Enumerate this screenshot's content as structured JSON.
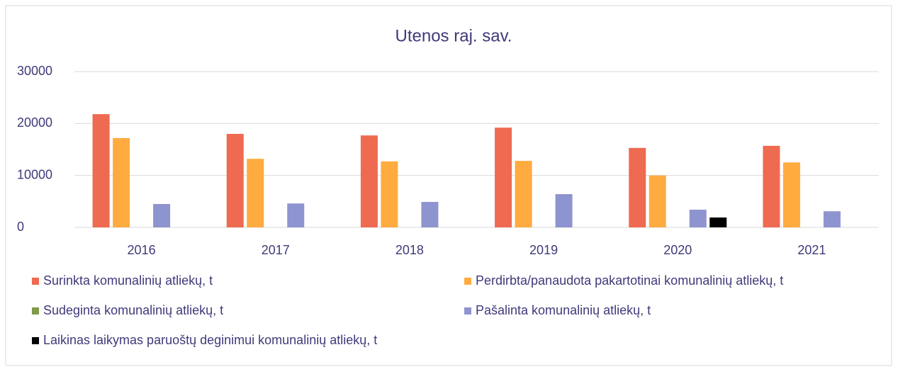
{
  "chart_data": {
    "type": "bar",
    "title": "Utenos raj. sav.",
    "categories": [
      "2016",
      "2017",
      "2018",
      "2019",
      "2020",
      "2021"
    ],
    "series": [
      {
        "name": "Surinkta komunalinių atliekų, t",
        "color": "#ee6a50",
        "values": [
          21800,
          18000,
          17700,
          19200,
          15300,
          15700
        ]
      },
      {
        "name": "Perdirbta/panaudota pakartotinai komunalinių atliekų, t",
        "color": "#ffab40",
        "values": [
          17200,
          13200,
          12700,
          12800,
          10000,
          12500
        ]
      },
      {
        "name": "Sudeginta komunalinių atliekų, t",
        "color": "#7f9a48",
        "values": [
          0,
          0,
          0,
          0,
          0,
          0
        ]
      },
      {
        "name": "Pašalinta komunalinių atliekų, t",
        "color": "#8e94cf",
        "values": [
          4500,
          4600,
          4900,
          6400,
          3400,
          3100
        ]
      },
      {
        "name": "Laikinas laikymas paruoštų deginimui komunalinių atliekų, t",
        "color": "#000000",
        "values": [
          null,
          null,
          null,
          null,
          1900,
          null
        ]
      }
    ],
    "ylim": [
      0,
      30000
    ],
    "yticks": [
      0,
      10000,
      20000,
      30000
    ],
    "grid": true
  }
}
